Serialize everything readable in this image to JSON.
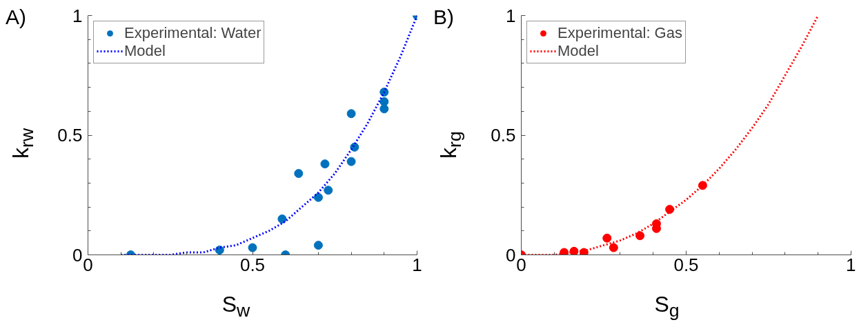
{
  "chart_data": [
    {
      "type": "scatter",
      "title": "A)",
      "xlabel": "S$_{w}$",
      "ylabel": "k$_{rw}$",
      "xlim": [
        0,
        1
      ],
      "ylim": [
        0,
        1
      ],
      "xticks": [
        0,
        {
          "value": 0.1,
          "label": null
        },
        {
          "value": 0.2,
          "label": null
        },
        {
          "value": 0.3,
          "label": null
        },
        {
          "value": 0.4,
          "label": null
        },
        0.5,
        {
          "value": 0.6,
          "label": null
        },
        {
          "value": 0.7,
          "label": null
        },
        {
          "value": 0.8,
          "label": null
        },
        {
          "value": 0.9,
          "label": null
        },
        1
      ],
      "yticks": [
        0,
        {
          "value": 0.1,
          "label": null
        },
        {
          "value": 0.2,
          "label": null
        },
        {
          "value": 0.3,
          "label": null
        },
        {
          "value": 0.4,
          "label": null
        },
        0.5,
        {
          "value": 0.6,
          "label": null
        },
        {
          "value": 0.7,
          "label": null
        },
        {
          "value": 0.8,
          "label": null
        },
        {
          "value": 0.9,
          "label": null
        },
        1
      ],
      "grid": false,
      "legend": "top left",
      "series": [
        {
          "name": "Experimental: Water",
          "type": "scatter",
          "marker": "circle",
          "color": "#0072bd",
          "x": [
            0.13,
            0.4,
            0.5,
            0.6,
            0.59,
            0.64,
            0.7,
            0.7,
            0.72,
            0.73,
            0.8,
            0.8,
            0.81,
            0.9,
            0.9,
            0.9,
            1.0
          ],
          "values": [
            0,
            0.02,
            0.03,
            0,
            0.15,
            0.34,
            0.04,
            0.24,
            0.38,
            0.27,
            0.59,
            0.39,
            0.45,
            0.68,
            0.64,
            0.61,
            1.0
          ]
        },
        {
          "name": "Model",
          "type": "line",
          "line_style": "dotted",
          "marker": "none",
          "color": "#0000ff",
          "x": [
            0.1,
            0.15,
            0.2,
            0.25,
            0.3,
            0.35,
            0.4,
            0.45,
            0.5,
            0.55,
            0.6,
            0.65,
            0.7,
            0.75,
            0.8,
            0.85,
            0.9,
            0.95,
            1.0
          ],
          "values": [
            0,
            0,
            0,
            0,
            0.01,
            0.01,
            0.03,
            0.04,
            0.07,
            0.1,
            0.14,
            0.2,
            0.26,
            0.34,
            0.44,
            0.55,
            0.68,
            0.83,
            1.0
          ]
        }
      ]
    },
    {
      "type": "scatter",
      "title": "B)",
      "xlabel": "S$_{g}$",
      "ylabel": "k$_{rg}$",
      "xlim": [
        0,
        1
      ],
      "ylim": [
        0,
        1
      ],
      "xticks": [
        0,
        {
          "value": 0.1,
          "label": null
        },
        {
          "value": 0.2,
          "label": null
        },
        {
          "value": 0.3,
          "label": null
        },
        {
          "value": 0.4,
          "label": null
        },
        0.5,
        {
          "value": 0.6,
          "label": null
        },
        {
          "value": 0.7,
          "label": null
        },
        {
          "value": 0.8,
          "label": null
        },
        {
          "value": 0.9,
          "label": null
        },
        1
      ],
      "yticks": [
        0,
        {
          "value": 0.1,
          "label": null
        },
        {
          "value": 0.2,
          "label": null
        },
        {
          "value": 0.3,
          "label": null
        },
        {
          "value": 0.4,
          "label": null
        },
        0.5,
        {
          "value": 0.6,
          "label": null
        },
        {
          "value": 0.7,
          "label": null
        },
        {
          "value": 0.8,
          "label": null
        },
        {
          "value": 0.9,
          "label": null
        },
        1
      ],
      "grid": false,
      "legend": "top left",
      "series": [
        {
          "name": "Experimental: Gas",
          "type": "scatter",
          "marker": "circle",
          "color": "#ff0000",
          "x": [
            0,
            0.13,
            0.16,
            0.19,
            0.26,
            0.28,
            0.36,
            0.41,
            0.41,
            0.45,
            0.55
          ],
          "values": [
            0,
            0.01,
            0.015,
            0.01,
            0.07,
            0.03,
            0.08,
            0.13,
            0.11,
            0.19,
            0.29
          ]
        },
        {
          "name": "Model",
          "type": "line",
          "line_style": "dotted",
          "marker": "none",
          "color": "#ff0000",
          "x": [
            0,
            0.05,
            0.1,
            0.15,
            0.2,
            0.25,
            0.3,
            0.35,
            0.4,
            0.45,
            0.5,
            0.55,
            0.6,
            0.65,
            0.7,
            0.75,
            0.8,
            0.85,
            0.9
          ],
          "values": [
            0,
            0,
            0,
            0.01,
            0.02,
            0.04,
            0.06,
            0.09,
            0.13,
            0.18,
            0.23,
            0.29,
            0.36,
            0.44,
            0.53,
            0.63,
            0.75,
            0.87,
            1.0
          ]
        }
      ]
    }
  ]
}
